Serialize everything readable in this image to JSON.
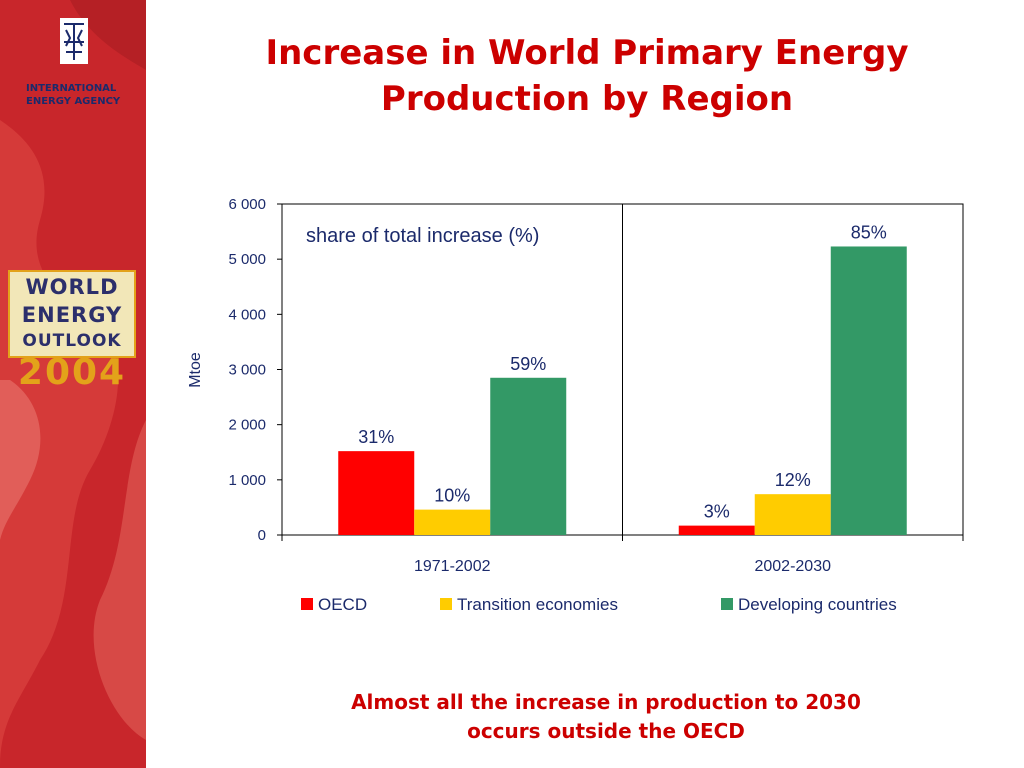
{
  "slide": {
    "title_line1": "Increase in World Primary Energy",
    "title_line2": "Production by Region",
    "footer_line1": "Almost all the increase in production to 2030",
    "footer_line2": "occurs outside the OECD"
  },
  "branding": {
    "iea_line1": "INTERNATIONAL",
    "iea_line2": "ENERGY AGENCY",
    "weo_line1": "WORLD",
    "weo_line2": "ENERGY",
    "weo_line3": "OUTLOOK",
    "weo_year": "2004",
    "colors": {
      "sidebar_red": "#c8262b",
      "navy": "#1b2a6b",
      "gold": "#e3a21a"
    }
  },
  "chart_data": {
    "type": "bar",
    "title": "",
    "annotation": "share of total increase (%)",
    "xlabel": "",
    "ylabel": "Mtoe",
    "ylim": [
      0,
      6000
    ],
    "y_ticks": [
      {
        "value": 0,
        "label": "0"
      },
      {
        "value": 1000,
        "label": "1 000"
      },
      {
        "value": 2000,
        "label": "2 000"
      },
      {
        "value": 3000,
        "label": "3 000"
      },
      {
        "value": 4000,
        "label": "4 000"
      },
      {
        "value": 5000,
        "label": "5 000"
      },
      {
        "value": 6000,
        "label": "6 000"
      }
    ],
    "categories": [
      "1971-2002",
      "2002-2030"
    ],
    "series": [
      {
        "name": "OECD",
        "color": "#ff0000",
        "values": [
          1520,
          170
        ],
        "labels": [
          "31%",
          "3%"
        ]
      },
      {
        "name": "Transition economies",
        "color": "#ffcc00",
        "values": [
          460,
          740
        ],
        "labels": [
          "10%",
          "12%"
        ]
      },
      {
        "name": "Developing countries",
        "color": "#339966",
        "values": [
          2850,
          5230
        ],
        "labels": [
          "59%",
          "85%"
        ]
      }
    ],
    "legend_position": "bottom",
    "grid": false
  }
}
